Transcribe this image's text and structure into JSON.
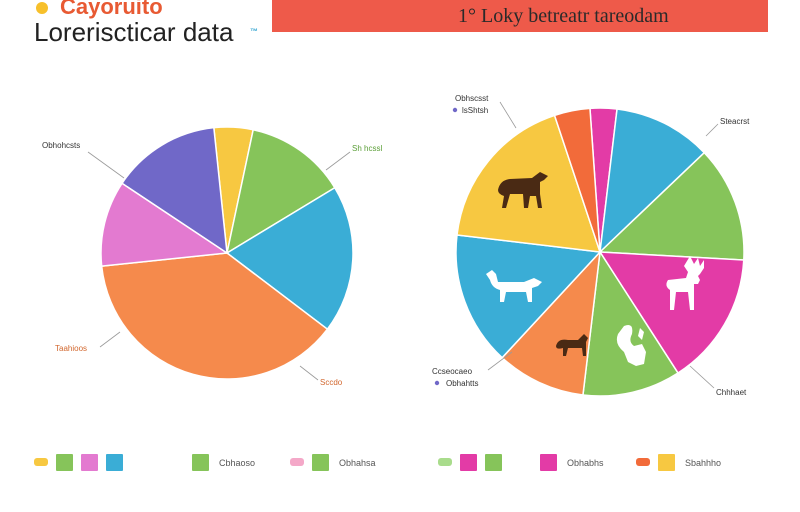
{
  "header": {
    "subtitle": "Cayoruito",
    "title": "Loreriscticar data",
    "badge": "™",
    "banner_text": "1° Loky betreatr tareodam",
    "banner_color": "#ee5a4a"
  },
  "colors": {
    "purple": "#7068c8",
    "yellow": "#f7c841",
    "green": "#86c45a",
    "blue": "#3aadd6",
    "pink": "#e37ad0",
    "orange": "#f58a4c",
    "magenta": "#e33ba6",
    "pale_pink": "#f4a8c8",
    "deep_orange": "#f26b3a",
    "coral": "#f7948a",
    "pale_green": "#a9dc8c"
  },
  "chart_data": [
    {
      "type": "pie",
      "title": "",
      "slices": [
        {
          "value": 5,
          "color": "#f7c841"
        },
        {
          "value": 13,
          "color": "#86c45a"
        },
        {
          "value": 19,
          "color": "#3aadd6"
        },
        {
          "value": 38,
          "color": "#f58a4c"
        },
        {
          "value": 11,
          "color": "#e37ad0"
        },
        {
          "value": 14,
          "color": "#7068c8"
        }
      ],
      "callouts": [
        "Obhohcsts",
        "Sh hcssl",
        "Taahioos",
        "Sccdo"
      ]
    },
    {
      "type": "pie",
      "title": "",
      "slices": [
        {
          "value": 3,
          "color": "#e33ba6"
        },
        {
          "value": 11,
          "color": "#3aadd6"
        },
        {
          "value": 13,
          "color": "#86c45a"
        },
        {
          "value": 15,
          "color": "#e33ba6"
        },
        {
          "value": 11,
          "color": "#86c45a"
        },
        {
          "value": 10,
          "color": "#f58a4c"
        },
        {
          "value": 15,
          "color": "#3aadd6"
        },
        {
          "value": 18,
          "color": "#f7c841"
        },
        {
          "value": 4,
          "color": "#f26b3a"
        }
      ],
      "icons": [
        "horse-icon",
        "goat-icon",
        "dog-icon",
        "deer-icon",
        "squirrel-icon"
      ],
      "callouts": [
        "Obhscsst",
        "lsShtsh",
        "Steacrst",
        "Ccseocaeo",
        "Obhahtts",
        "Chhhaet"
      ]
    }
  ],
  "legend": {
    "groups": [
      {
        "swatches": [
          "#f7c841",
          "#86c45a",
          "#e37ad0",
          "#3aadd6"
        ],
        "label": ""
      },
      {
        "swatches": [
          "#86c45a"
        ],
        "label": "Cbhaoso"
      },
      {
        "swatches": [
          "#f4a8c8",
          "#86c45a"
        ],
        "label": "Obhahsa"
      },
      {
        "swatches": [
          "#a9dc8c",
          "#e33ba6",
          "#86c45a"
        ],
        "label": ""
      },
      {
        "swatches": [
          "#e33ba6"
        ],
        "label": "Obhabhs"
      },
      {
        "swatches": [
          "#f26b3a",
          "#f7c841"
        ],
        "label": "Sbahhho"
      }
    ]
  }
}
